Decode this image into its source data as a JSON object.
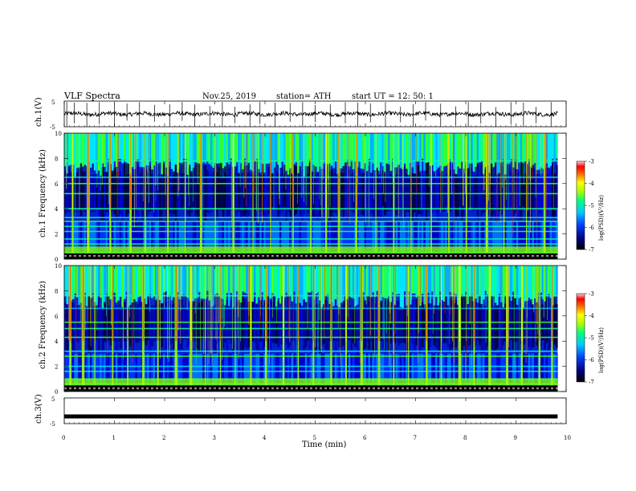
{
  "header": {
    "title": "VLF  Spectra",
    "date": "Nov.25, 2019",
    "station": "station= ATH",
    "start": "start  UT  =    12: 50: 1"
  },
  "chart_data": [
    {
      "type": "line",
      "name": "ch1-waveform",
      "ylabel": "ch.1(V)",
      "ylim": [
        -5,
        5
      ],
      "yticks": [
        "5",
        "-5"
      ],
      "xlim": [
        0,
        10
      ],
      "baseline": 0,
      "spike_min": [
        0.05,
        0.2,
        0.45,
        0.7,
        1.0,
        1.25,
        1.5,
        1.8,
        2.1,
        2.35,
        2.6,
        2.9,
        3.15,
        3.4,
        3.7,
        3.9,
        4.2,
        4.5,
        4.75,
        5.0,
        5.3,
        5.6,
        5.85,
        6.1,
        6.4,
        6.7,
        6.95,
        7.2,
        7.5,
        7.8,
        8.05,
        8.3,
        8.6,
        8.9,
        9.15,
        9.4,
        9.7
      ]
    },
    {
      "type": "heatmap",
      "name": "ch1-spectrogram",
      "ylabel": "ch.1  Frequency  (kHz)",
      "xlim": [
        0,
        10
      ],
      "ylim": [
        0,
        10
      ],
      "yticks": [
        "0",
        "2",
        "4",
        "6",
        "8",
        "10"
      ],
      "colorbar": {
        "label": "log(PSD)(V²/Hz)",
        "range": [
          -7,
          -3
        ],
        "ticks": [
          "-3",
          "-4",
          "-5",
          "-6",
          "-7"
        ]
      },
      "end_min": 9.83,
      "noise_bands_khz": [
        0.5,
        1.2,
        1.6,
        2.2,
        2.6,
        3.0,
        3.3,
        4.0,
        5.2,
        6.0,
        6.5,
        7.8
      ],
      "sferic_min": [
        0.15,
        0.45,
        0.9,
        1.3,
        1.6,
        2.05,
        2.4,
        2.7,
        3.0,
        3.35,
        3.75,
        4.1,
        4.55,
        4.9,
        5.2,
        5.45,
        5.8,
        6.2,
        6.55,
        6.9,
        7.3,
        7.65,
        8.0,
        8.4,
        8.75,
        9.2,
        9.55
      ]
    },
    {
      "type": "heatmap",
      "name": "ch2-spectrogram",
      "ylabel": "ch.2  Frequency  (kHz)",
      "xlim": [
        0,
        10
      ],
      "ylim": [
        0,
        10
      ],
      "yticks": [
        "0",
        "2",
        "4",
        "6",
        "8",
        "10"
      ],
      "colorbar": {
        "label": "log(PSD)(V²/Hz)",
        "range": [
          -7,
          -3
        ],
        "ticks": [
          "-3",
          "-4",
          "-5",
          "-6",
          "-7"
        ]
      },
      "end_min": 9.83,
      "noise_bands_khz": [
        0.6,
        1.0,
        1.6,
        2.0,
        2.8,
        3.2,
        4.3,
        5.0,
        5.5,
        6.6,
        7.6
      ],
      "sferic_min": [
        0.1,
        0.35,
        0.6,
        0.95,
        1.25,
        1.55,
        1.85,
        2.2,
        2.5,
        2.8,
        3.1,
        3.4,
        3.7,
        4.0,
        4.35,
        4.65,
        4.95,
        5.3,
        5.6,
        5.9,
        6.25,
        6.55,
        6.85,
        7.2,
        7.5,
        7.85,
        8.15,
        8.45,
        8.8,
        9.1,
        9.45,
        9.7
      ]
    },
    {
      "type": "line",
      "name": "ch3-waveform",
      "ylabel": "ch.3(V)",
      "ylim": [
        -5,
        5
      ],
      "yticks": [
        "5",
        "-5"
      ],
      "xlim": [
        0,
        10
      ],
      "baseline": -2.2,
      "xlabel": "Time  (min)",
      "xticks": [
        "0",
        "1",
        "2",
        "3",
        "4",
        "5",
        "6",
        "7",
        "8",
        "9",
        "10"
      ]
    }
  ]
}
